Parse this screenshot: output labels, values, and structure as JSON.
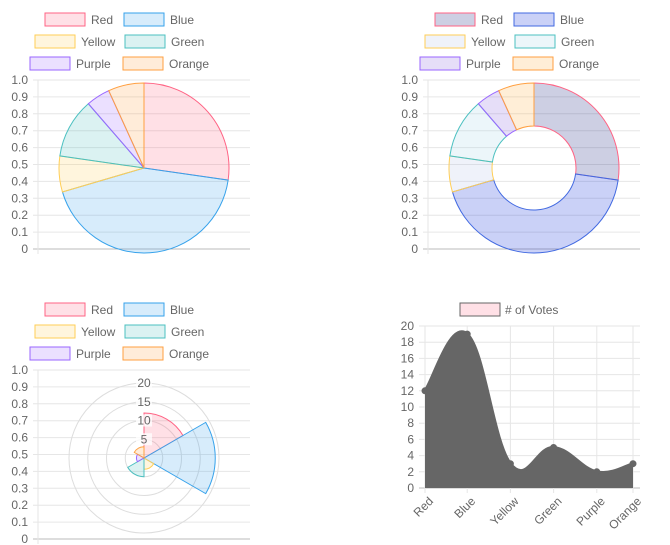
{
  "chart_data": [
    {
      "type": "pie",
      "categories": [
        "Red",
        "Blue",
        "Yellow",
        "Green",
        "Purple",
        "Orange"
      ],
      "values": [
        12,
        19,
        3,
        5,
        2,
        3
      ],
      "colors": [
        "#ff6384",
        "#36a2eb",
        "#ffce56",
        "#4bc0c0",
        "#9966ff",
        "#ff9f40"
      ],
      "fill_alpha": 0.2,
      "legend_position": "top",
      "y_ticks": [
        "0",
        "0.1",
        "0.2",
        "0.3",
        "0.4",
        "0.5",
        "0.6",
        "0.7",
        "0.8",
        "0.9",
        "1.0"
      ],
      "ylim": [
        0,
        1
      ],
      "grid": true
    },
    {
      "type": "pie",
      "variant": "doughnut",
      "categories": [
        "Red",
        "Blue",
        "Yellow",
        "Green",
        "Purple",
        "Orange"
      ],
      "values": [
        12,
        19,
        3,
        5,
        2,
        3
      ],
      "colors": [
        "#1a237e",
        "#0d2fd9",
        "#b6c2e8",
        "#a8d8ea",
        "#8b6be0",
        "#ffb347"
      ],
      "border_colors": [
        "#ff6384",
        "#4169e1",
        "#ffce56",
        "#4bc0c0",
        "#9966ff",
        "#ff9f40"
      ],
      "fill_alpha": 0.22,
      "legend_position": "top",
      "y_ticks": [
        "0",
        "0.1",
        "0.2",
        "0.3",
        "0.4",
        "0.5",
        "0.6",
        "0.7",
        "0.8",
        "0.9",
        "1.0"
      ],
      "ylim": [
        0,
        1
      ],
      "grid": true
    },
    {
      "type": "polarArea",
      "categories": [
        "Red",
        "Blue",
        "Yellow",
        "Green",
        "Purple",
        "Orange"
      ],
      "values": [
        12,
        19,
        3,
        5,
        2,
        3
      ],
      "colors": [
        "#ff6384",
        "#36a2eb",
        "#ffce56",
        "#4bc0c0",
        "#9966ff",
        "#ff9f40"
      ],
      "fill_alpha": 0.2,
      "legend_position": "top",
      "r_ticks": [
        "5",
        "10",
        "15",
        "20"
      ],
      "rlim": [
        0,
        20
      ],
      "y_ticks": [
        "0",
        "0.1",
        "0.2",
        "0.3",
        "0.4",
        "0.5",
        "0.6",
        "0.7",
        "0.8",
        "0.9",
        "1.0"
      ],
      "ylim": [
        0,
        1
      ],
      "grid": true
    },
    {
      "type": "area",
      "categories": [
        "Red",
        "Blue",
        "Yellow",
        "Green",
        "Purple",
        "Orange"
      ],
      "series": [
        {
          "name": "# of Votes",
          "values": [
            12,
            19,
            3,
            5,
            2,
            3
          ]
        }
      ],
      "fill_color": "#666666",
      "legend_box_color": "#ff6384",
      "legend_position": "top",
      "y_ticks": [
        "0",
        "2",
        "4",
        "6",
        "8",
        "10",
        "12",
        "14",
        "16",
        "18",
        "20"
      ],
      "ylim": [
        0,
        20
      ],
      "grid": true
    }
  ]
}
